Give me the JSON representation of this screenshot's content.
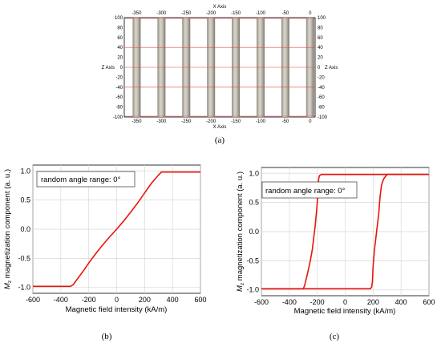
{
  "panel_a": {
    "x_axis_label": "X Axis",
    "z_axis_label": "Z Axis",
    "x_ticks": [
      "-350",
      "-300",
      "-250",
      "-200",
      "-150",
      "-100",
      "-50",
      "0"
    ],
    "z_ticks": [
      "100",
      "80",
      "60",
      "40",
      "20",
      "0",
      "-20",
      "-40",
      "-60",
      "-80",
      "-100"
    ],
    "caption": "(a)"
  },
  "chart_data": [
    {
      "type": "line",
      "panel": "b",
      "annotation": "random angle range: 0°",
      "xlabel": "Magnetic field intensity (kA/m)",
      "ylabel_symbol": "M",
      "ylabel_sub": "z",
      "ylabel_rest": " magnetization component  (a. u.)",
      "xlim": [
        -600,
        600
      ],
      "ylim": [
        -1.1,
        1.1
      ],
      "x_ticks": [
        "-600",
        "-400",
        "-200",
        "0",
        "200",
        "400",
        "600"
      ],
      "y_ticks": [
        "1.0",
        "0.5",
        "0.0",
        "-0.5",
        "-1.0"
      ],
      "grid": true,
      "series": [
        {
          "color": "#e8140c",
          "x": [
            -600,
            -330,
            -310,
            -280,
            -240,
            -200,
            -150,
            -100,
            -50,
            0,
            50,
            100,
            150,
            200,
            250,
            300,
            320,
            340,
            600
          ],
          "values": [
            -0.98,
            -0.98,
            -0.95,
            -0.85,
            -0.72,
            -0.58,
            -0.42,
            -0.27,
            -0.13,
            0.0,
            0.14,
            0.29,
            0.45,
            0.62,
            0.79,
            0.93,
            0.98,
            0.98,
            0.98
          ]
        }
      ],
      "caption": "(b)"
    },
    {
      "type": "line",
      "panel": "c",
      "annotation": "random angle range: 0°",
      "xlabel": "Magnetic field intensity (kA/m)",
      "ylabel_symbol": "M",
      "ylabel_sub": "z",
      "ylabel_rest": " magnetization component  (a. u.)",
      "xlim": [
        -600,
        600
      ],
      "ylim": [
        -1.1,
        1.1
      ],
      "x_ticks": [
        "-600",
        "-400",
        "-200",
        "0",
        "200",
        "400",
        "600"
      ],
      "y_ticks": [
        "1.0",
        "0.5",
        "0.0",
        "-0.5",
        "-1.0"
      ],
      "grid": true,
      "series": [
        {
          "color": "#e8140c",
          "x": [
            -600,
            -300,
            -290,
            -270,
            -250,
            -235,
            -225,
            -215,
            -205,
            -195,
            -190,
            -185,
            -170,
            600
          ],
          "values": [
            -0.98,
            -0.98,
            -0.92,
            -0.72,
            -0.5,
            -0.3,
            -0.1,
            0.1,
            0.35,
            0.65,
            0.9,
            0.96,
            0.98,
            0.98
          ]
        },
        {
          "color": "#e8140c",
          "x": [
            600,
            300,
            290,
            275,
            260,
            250,
            240,
            225,
            210,
            200,
            195,
            190,
            180,
            -600
          ],
          "values": [
            0.98,
            0.98,
            0.95,
            0.9,
            0.8,
            0.6,
            0.3,
            0.0,
            -0.3,
            -0.6,
            -0.85,
            -0.95,
            -0.98,
            -0.98
          ]
        }
      ],
      "caption": "(c)"
    }
  ]
}
